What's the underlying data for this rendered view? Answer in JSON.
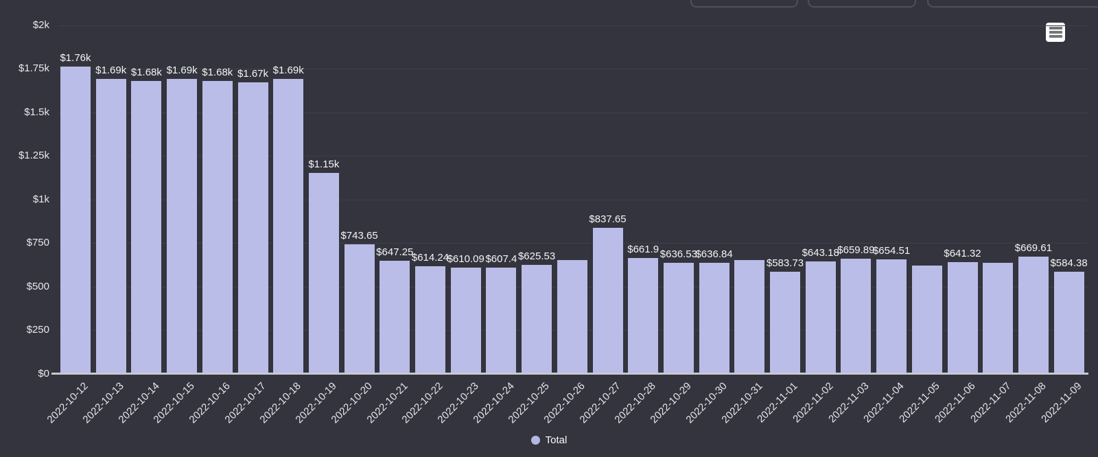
{
  "panel": {
    "colors": {
      "background": "#33343d",
      "bar": "#babde7",
      "gridline": "#3e3f48",
      "axis_line": "#c7c8d3",
      "legend_marker": "#b4b7e0",
      "value_label_text": "#f4f5f7",
      "tick_label_text": "#e6e7ec"
    },
    "legend": {
      "label": "Total"
    }
  },
  "chart_data": {
    "type": "bar",
    "title": "",
    "series_name": "Total",
    "legend_position": "bottom",
    "grid": true,
    "ylim": [
      0,
      2000
    ],
    "currency": "USD",
    "y_ticks": [
      {
        "label": "$2k",
        "value": 2000
      },
      {
        "label": "$1.75k",
        "value": 1750
      },
      {
        "label": "$1.5k",
        "value": 1500
      },
      {
        "label": "$1.25k",
        "value": 1250
      },
      {
        "label": "$1k",
        "value": 1000
      },
      {
        "label": "$750",
        "value": 750
      },
      {
        "label": "$500",
        "value": 500
      },
      {
        "label": "$250",
        "value": 250
      },
      {
        "label": "$0",
        "value": 0
      }
    ],
    "categories": [
      "2022-10-12",
      "2022-10-13",
      "2022-10-14",
      "2022-10-15",
      "2022-10-16",
      "2022-10-17",
      "2022-10-18",
      "2022-10-19",
      "2022-10-20",
      "2022-10-21",
      "2022-10-22",
      "2022-10-23",
      "2022-10-24",
      "2022-10-25",
      "2022-10-26",
      "2022-10-27",
      "2022-10-28",
      "2022-10-29",
      "2022-10-30",
      "2022-10-31",
      "2022-11-01",
      "2022-11-02",
      "2022-11-03",
      "2022-11-04",
      "2022-11-05",
      "2022-11-06",
      "2022-11-07",
      "2022-11-08",
      "2022-11-09"
    ],
    "values": [
      1760,
      1690,
      1680,
      1690,
      1680,
      1670,
      1690,
      1150,
      743.65,
      647.25,
      614.24,
      610.09,
      607.4,
      625.53,
      650,
      837.65,
      661.9,
      636.53,
      636.84,
      653,
      583.73,
      643.18,
      659.89,
      654.51,
      622,
      641.32,
      634,
      669.61,
      584.38
    ],
    "bar_labels": [
      "$1.76k",
      "$1.69k",
      "$1.68k",
      "$1.69k",
      "$1.68k",
      "$1.67k",
      "$1.69k",
      "$1.15k",
      "$743.65",
      "$647.25",
      "$614.24",
      "$610.09",
      "$607.4",
      "$625.53",
      null,
      "$837.65",
      "$661.9",
      "$636.53",
      "$636.84",
      null,
      "$583.73",
      "$643.18",
      "$659.89",
      "$654.51",
      null,
      "$641.32",
      null,
      "$669.61",
      "$584.38"
    ]
  }
}
